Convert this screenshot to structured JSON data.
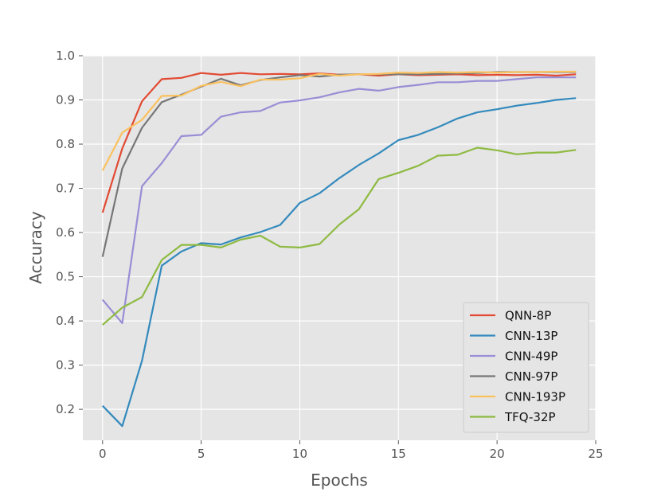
{
  "chart_data": {
    "type": "line",
    "title": "",
    "xlabel": "Epochs",
    "ylabel": "Accuracy",
    "xlim": [
      -1,
      25
    ],
    "ylim": [
      0.13,
      1.0
    ],
    "xticks": [
      0,
      5,
      10,
      15,
      20,
      25
    ],
    "xtick_labels": [
      "0",
      "5",
      "10",
      "15",
      "20",
      "25"
    ],
    "yticks": [
      0.2,
      0.3,
      0.4,
      0.5,
      0.6,
      0.7,
      0.8,
      0.9,
      1.0
    ],
    "ytick_labels": [
      "0.2",
      "0.3",
      "0.4",
      "0.5",
      "0.6",
      "0.7",
      "0.8",
      "0.9",
      "1.0"
    ],
    "grid": true,
    "legend_position": "lower-right",
    "x": [
      0,
      1,
      2,
      3,
      4,
      5,
      6,
      7,
      8,
      9,
      10,
      11,
      12,
      13,
      14,
      15,
      16,
      17,
      18,
      19,
      20,
      21,
      22,
      23,
      24
    ],
    "series": [
      {
        "name": "QNN-8P",
        "color": "#e24a33",
        "values": [
          0.645,
          0.79,
          0.897,
          0.947,
          0.95,
          0.961,
          0.957,
          0.961,
          0.958,
          0.959,
          0.958,
          0.96,
          0.957,
          0.958,
          0.955,
          0.958,
          0.956,
          0.957,
          0.958,
          0.956,
          0.957,
          0.956,
          0.957,
          0.955,
          0.958
        ]
      },
      {
        "name": "CNN-13P",
        "color": "#348abd",
        "values": [
          0.208,
          0.162,
          0.31,
          0.525,
          0.557,
          0.576,
          0.573,
          0.589,
          0.601,
          0.617,
          0.667,
          0.689,
          0.723,
          0.753,
          0.779,
          0.809,
          0.821,
          0.838,
          0.858,
          0.872,
          0.879,
          0.887,
          0.893,
          0.9,
          0.904
        ]
      },
      {
        "name": "CNN-49P",
        "color": "#988ed5",
        "values": [
          0.448,
          0.395,
          0.705,
          0.757,
          0.818,
          0.821,
          0.862,
          0.872,
          0.875,
          0.894,
          0.899,
          0.906,
          0.917,
          0.925,
          0.921,
          0.929,
          0.934,
          0.94,
          0.94,
          0.943,
          0.943,
          0.947,
          0.951,
          0.951,
          0.951
        ]
      },
      {
        "name": "CNN-97P",
        "color": "#777777",
        "values": [
          0.545,
          0.745,
          0.837,
          0.895,
          0.912,
          0.93,
          0.948,
          0.933,
          0.945,
          0.951,
          0.956,
          0.953,
          0.957,
          0.958,
          0.958,
          0.958,
          0.958,
          0.959,
          0.96,
          0.961,
          0.963,
          0.963,
          0.963,
          0.963,
          0.963
        ]
      },
      {
        "name": "CNN-193P",
        "color": "#fbc15e",
        "values": [
          0.74,
          0.826,
          0.855,
          0.909,
          0.91,
          0.932,
          0.941,
          0.931,
          0.946,
          0.946,
          0.949,
          0.959,
          0.955,
          0.958,
          0.959,
          0.962,
          0.961,
          0.963,
          0.962,
          0.963,
          0.962,
          0.963,
          0.963,
          0.964,
          0.964
        ]
      },
      {
        "name": "TFQ-32P",
        "color": "#8eba42",
        "values": [
          0.391,
          0.43,
          0.454,
          0.538,
          0.572,
          0.572,
          0.566,
          0.584,
          0.593,
          0.568,
          0.566,
          0.574,
          0.618,
          0.653,
          0.721,
          0.735,
          0.751,
          0.774,
          0.776,
          0.792,
          0.786,
          0.777,
          0.781,
          0.781,
          0.787
        ]
      }
    ]
  }
}
